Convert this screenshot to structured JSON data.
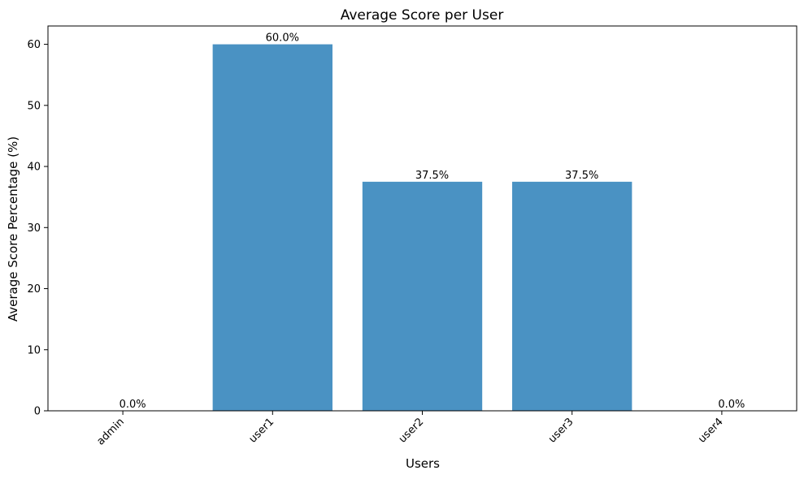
{
  "chart_data": {
    "type": "bar",
    "title": "Average Score per User",
    "xlabel": "Users",
    "ylabel": "Average Score Percentage (%)",
    "categories": [
      "admin",
      "user1",
      "user2",
      "user3",
      "user4"
    ],
    "values": [
      0.0,
      60.0,
      37.5,
      37.5,
      0.0
    ],
    "value_labels": [
      "0.0%",
      "60.0%",
      "37.5%",
      "37.5%",
      "0.0%"
    ],
    "ylim": [
      0,
      63
    ],
    "yticks": [
      0,
      10,
      20,
      30,
      40,
      50,
      60
    ],
    "grid": false,
    "bar_color": "#4a92c3"
  }
}
